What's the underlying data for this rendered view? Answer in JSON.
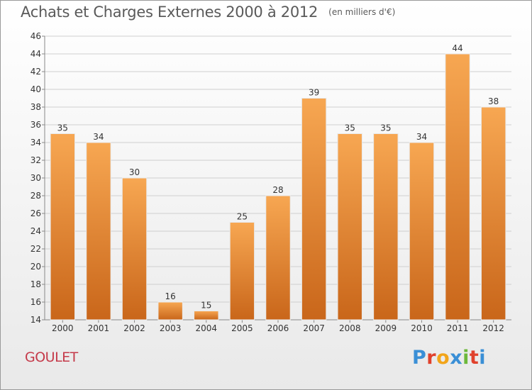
{
  "chart_data": {
    "type": "bar",
    "title": "Achats et Charges Externes 2000 à 2012",
    "subtitle": "(en milliers d'€)",
    "categories": [
      "2000",
      "2001",
      "2002",
      "2003",
      "2004",
      "2005",
      "2006",
      "2007",
      "2008",
      "2009",
      "2010",
      "2011",
      "2012"
    ],
    "values": [
      35,
      34,
      30,
      16,
      15,
      25,
      28,
      39,
      35,
      35,
      34,
      44,
      38
    ],
    "ylim": [
      14,
      46
    ],
    "yticks": [
      14,
      16,
      18,
      20,
      22,
      24,
      26,
      28,
      30,
      32,
      34,
      36,
      38,
      40,
      42,
      44,
      46
    ],
    "xlabel": "",
    "ylabel": "",
    "grid": true,
    "bar_color_top": "#f7a752",
    "bar_color_bottom": "#c9661a",
    "grid_color": "#cfcfcf"
  },
  "footer": {
    "commune": "GOULET",
    "logo_text": "Proxiti",
    "logo_colors": [
      "#3a8fd6",
      "#e0412c",
      "#f2a51a",
      "#3a8fd6",
      "#6cb83a",
      "#e0412c",
      "#3a8fd6"
    ]
  }
}
